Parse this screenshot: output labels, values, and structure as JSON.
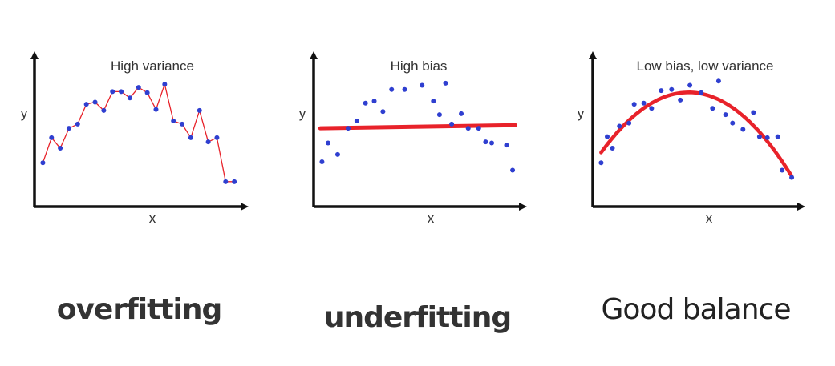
{
  "chart_data": [
    {
      "type": "scatter",
      "title": "High variance",
      "xlabel": "x",
      "ylabel": "y",
      "caption": "overfitting",
      "fit": "interpolating-line",
      "fit_color": "#e8222a",
      "point_color": "#2f3fd0",
      "x": [
        0.5,
        1.5,
        2.5,
        3.5,
        4.5,
        5.5,
        6.5,
        7.5,
        8.5,
        9.5,
        10.5,
        11.5,
        12.5,
        13.5,
        14.5,
        15.5,
        16.5,
        17.5,
        18.5,
        19.5,
        20.5,
        21.5,
        22.5
      ],
      "y": [
        2.3,
        4.7,
        3.7,
        5.6,
        6.0,
        7.9,
        8.1,
        7.3,
        9.1,
        9.1,
        8.5,
        9.5,
        9.0,
        7.4,
        9.8,
        6.3,
        6.0,
        4.7,
        7.3,
        4.3,
        4.7,
        0.5,
        0.5
      ]
    },
    {
      "type": "scatter",
      "title": "High bias",
      "xlabel": "x",
      "ylabel": "y",
      "caption": "underfitting",
      "fit": "straight-line",
      "fit_color": "#e8222a",
      "fit_line": [
        [
          0.3,
          5.6
        ],
        [
          22.7,
          5.9
        ]
      ],
      "point_color": "#2f3fd0",
      "x": [
        0.5,
        1.2,
        2.3,
        3.5,
        4.5,
        5.5,
        6.5,
        7.5,
        8.5,
        10.0,
        12.0,
        13.3,
        14.0,
        14.7,
        15.4,
        16.5,
        17.3,
        18.5,
        19.3,
        20.0,
        21.7,
        22.4
      ],
      "y": [
        2.4,
        4.2,
        3.1,
        5.6,
        6.3,
        8.0,
        8.2,
        7.2,
        9.3,
        9.3,
        9.7,
        8.2,
        6.9,
        9.9,
        6.0,
        7.0,
        5.6,
        5.6,
        4.3,
        4.2,
        4.0,
        1.6
      ]
    },
    {
      "type": "scatter",
      "title": "Low bias, low variance",
      "xlabel": "x",
      "ylabel": "y",
      "caption": "Good balance",
      "fit": "parabola",
      "fit_color": "#e8222a",
      "point_color": "#2f3fd0",
      "x": [
        0.5,
        1.2,
        1.8,
        2.6,
        3.7,
        4.3,
        5.4,
        6.3,
        7.4,
        8.6,
        9.6,
        10.7,
        12.0,
        13.3,
        14.0,
        14.8,
        15.6,
        16.8,
        18.0,
        18.7,
        19.6,
        20.8,
        21.3,
        22.4
      ],
      "y": [
        2.3,
        4.8,
        3.7,
        5.8,
        6.1,
        7.9,
        8.0,
        7.5,
        9.2,
        9.3,
        8.3,
        9.7,
        9.0,
        7.5,
        10.1,
        6.9,
        6.1,
        5.5,
        7.1,
        4.8,
        4.7,
        4.8,
        1.6,
        0.9
      ]
    }
  ]
}
